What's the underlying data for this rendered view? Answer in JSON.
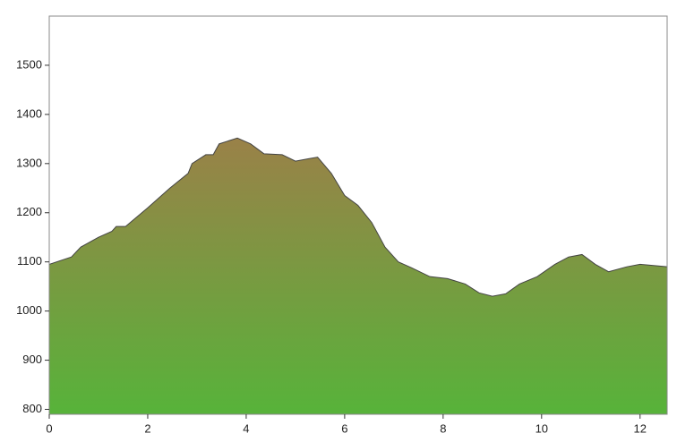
{
  "chart_data": {
    "type": "area",
    "x": [
      0,
      0.45,
      0.64,
      1.0,
      1.27,
      1.36,
      1.55,
      2.0,
      2.45,
      2.82,
      2.9,
      3.18,
      3.33,
      3.45,
      3.82,
      4.09,
      4.36,
      4.73,
      5.0,
      5.27,
      5.45,
      5.73,
      6.0,
      6.27,
      6.55,
      6.82,
      7.09,
      7.36,
      7.73,
      8.09,
      8.45,
      8.73,
      9.0,
      9.27,
      9.55,
      9.91,
      10.27,
      10.55,
      10.82,
      11.09,
      11.36,
      11.73,
      12.0,
      12.55
    ],
    "values": [
      1095,
      1110,
      1130,
      1150,
      1162,
      1172,
      1172,
      1210,
      1250,
      1280,
      1300,
      1318,
      1318,
      1340,
      1352,
      1340,
      1320,
      1318,
      1305,
      1310,
      1313,
      1280,
      1235,
      1215,
      1180,
      1130,
      1100,
      1088,
      1070,
      1066,
      1055,
      1037,
      1030,
      1035,
      1055,
      1070,
      1095,
      1110,
      1115,
      1095,
      1080,
      1090,
      1095,
      1090
    ],
    "xlim": [
      0,
      12.55
    ],
    "ylim": [
      790,
      1600
    ],
    "xticks": [
      0,
      2,
      4,
      6,
      8,
      10,
      12
    ],
    "yticks": [
      800,
      900,
      1000,
      1100,
      1200,
      1300,
      1400,
      1500
    ],
    "fill_top": "#9a8148",
    "fill_bottom": "#57b33a",
    "line_color": "#444444"
  }
}
